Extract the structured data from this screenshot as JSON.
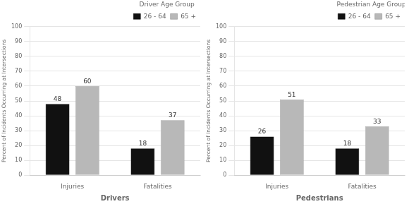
{
  "chart_data": [
    {
      "type": "bar",
      "xlabel": "Drivers",
      "ylabel": "Percent of Incidents Occurring at Intersections",
      "legend_title": "Driver Age Group",
      "categories": [
        "Injuries",
        "Fatalities"
      ],
      "series": [
        {
          "name": "26 - 64",
          "color": "#111111",
          "values": [
            48,
            18
          ]
        },
        {
          "name": "65 +",
          "color": "#b8b8b8",
          "values": [
            60,
            37
          ]
        }
      ],
      "ylim": [
        0,
        100
      ],
      "yticks": [
        0,
        10,
        20,
        30,
        40,
        50,
        60,
        70,
        80,
        90,
        100
      ],
      "grid": true,
      "legend": "upper right",
      "data_labels": true
    },
    {
      "type": "bar",
      "xlabel": "Pedestrians",
      "ylabel": "Percent of Incidents Occurring at Intersections",
      "legend_title": "Pedestrian Age Group",
      "categories": [
        "Injuries",
        "Fatalities"
      ],
      "series": [
        {
          "name": "26 - 64",
          "color": "#111111",
          "values": [
            26,
            18
          ]
        },
        {
          "name": "65 +",
          "color": "#b8b8b8",
          "values": [
            51,
            33
          ]
        }
      ],
      "ylim": [
        0,
        100
      ],
      "yticks": [
        0,
        10,
        20,
        30,
        40,
        50,
        60,
        70,
        80,
        90,
        100
      ],
      "grid": true,
      "legend": "upper right",
      "data_labels": true
    }
  ]
}
